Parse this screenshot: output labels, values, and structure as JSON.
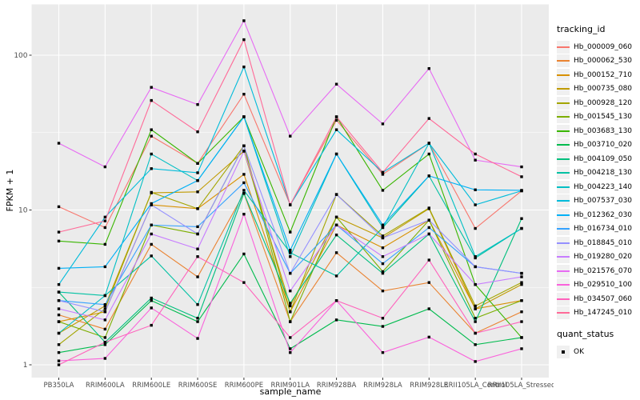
{
  "chart_data": {
    "type": "line",
    "title": "",
    "xlabel": "sample_name",
    "ylabel": "FPKM + 1",
    "y_scale": "log10",
    "y_ticks": [
      1,
      10,
      100
    ],
    "y_tick_labels": [
      "1",
      "10",
      "100"
    ],
    "y_minor_ticks": [
      3.1623,
      31.623
    ],
    "ylim": [
      0.83,
      210
    ],
    "grid": "white major+minor on gray panel",
    "legend_position": "right",
    "point_marker": "black square",
    "categories": [
      "PB350LA",
      "RRIM600LA",
      "RRIM600LE",
      "RRIM600SE",
      "RRIM600PE",
      "RRIM901LA",
      "RRIM928BA",
      "RRIM928LA",
      "RRIM928LE",
      "RRII105LA_Control",
      "RRII105LA_Stressed"
    ],
    "series": [
      {
        "name": "Hb_000009_060",
        "color": "#F8766D",
        "values": [
          10.5,
          7.7,
          30,
          20,
          56,
          10.8,
          38,
          17,
          27,
          7.6,
          13.3
        ]
      },
      {
        "name": "Hb_000062_530",
        "color": "#EA8331",
        "values": [
          2.1,
          1.7,
          6.0,
          3.7,
          12.8,
          1.9,
          5.3,
          3.0,
          3.4,
          1.6,
          2.2
        ]
      },
      {
        "name": "Hb_000152_710",
        "color": "#D89000",
        "values": [
          1.9,
          2.2,
          10.8,
          10.2,
          17,
          2.2,
          8.0,
          5.7,
          8.6,
          2.3,
          2.6
        ]
      },
      {
        "name": "Hb_000735_080",
        "color": "#C09B00",
        "values": [
          1.6,
          2.4,
          12.9,
          13.1,
          24,
          2.4,
          9.0,
          6.6,
          10.2,
          2.3,
          3.3
        ]
      },
      {
        "name": "Hb_000928_120",
        "color": "#A3A500",
        "values": [
          1.35,
          2.3,
          13.0,
          10.2,
          26,
          2.2,
          12.6,
          6.8,
          10.3,
          2.4,
          3.4
        ]
      },
      {
        "name": "Hb_001545_130",
        "color": "#7CAE00",
        "values": [
          1.9,
          1.5,
          8.0,
          7.0,
          26,
          1.9,
          9.0,
          4.0,
          8.6,
          2.0,
          2.6
        ]
      },
      {
        "name": "Hb_003683_130",
        "color": "#39B600",
        "values": [
          6.3,
          6.0,
          33,
          20,
          40,
          7.2,
          40,
          13.4,
          23,
          3.3,
          1.5
        ]
      },
      {
        "name": "Hb_003710_020",
        "color": "#00BB4E",
        "values": [
          1.2,
          1.35,
          2.6,
          1.9,
          5.2,
          1.27,
          1.95,
          1.77,
          2.3,
          1.35,
          1.5
        ]
      },
      {
        "name": "Hb_004109_050",
        "color": "#00BF7D",
        "values": [
          2.95,
          1.4,
          2.7,
          2.0,
          12.8,
          2.5,
          6.9,
          3.9,
          7.0,
          1.9,
          8.8
        ]
      },
      {
        "name": "Hb_004218_130",
        "color": "#00C1A3",
        "values": [
          2.95,
          2.8,
          5.05,
          2.45,
          13.4,
          5.3,
          3.75,
          7.7,
          16.6,
          4.9,
          7.6
        ]
      },
      {
        "name": "Hb_004223_140",
        "color": "#00BFC4",
        "values": [
          1.6,
          2.8,
          23,
          15.5,
          40,
          5.0,
          23,
          7.7,
          27,
          5.0,
          7.6
        ]
      },
      {
        "name": "Hb_007537_030",
        "color": "#00BBDA",
        "values": [
          3.3,
          9.0,
          18.5,
          17.4,
          84,
          10.8,
          33,
          17.5,
          27,
          10.8,
          13.3
        ]
      },
      {
        "name": "Hb_012362_030",
        "color": "#00B0F6",
        "values": [
          4.2,
          4.3,
          11,
          15.5,
          40,
          5.5,
          23,
          8.0,
          16.6,
          13.5,
          13.4
        ]
      },
      {
        "name": "Hb_016734_010",
        "color": "#35A2FF",
        "values": [
          2.6,
          2.45,
          8.0,
          7.8,
          15,
          3.9,
          8.0,
          4.5,
          7.7,
          4.3,
          3.9
        ]
      },
      {
        "name": "Hb_018845_010",
        "color": "#9590FF",
        "values": [
          2.6,
          2.2,
          10.8,
          7.0,
          26,
          3.9,
          12.6,
          6.6,
          8.6,
          4.3,
          3.9
        ]
      },
      {
        "name": "Hb_019280_020",
        "color": "#C77CFF",
        "values": [
          2.3,
          1.95,
          7.0,
          5.6,
          24,
          3.0,
          8.0,
          5.0,
          7.0,
          3.3,
          3.7
        ]
      },
      {
        "name": "Hb_021576_070",
        "color": "#E76BF3",
        "values": [
          27,
          19,
          62,
          48,
          167,
          30,
          65,
          36,
          82,
          21,
          19
        ]
      },
      {
        "name": "Hb_029510_100",
        "color": "#FA62DB",
        "values": [
          1.06,
          1.1,
          2.33,
          1.48,
          9.4,
          1.2,
          2.6,
          1.2,
          1.51,
          1.05,
          1.27
        ]
      },
      {
        "name": "Hb_034507_060",
        "color": "#FF62BC",
        "values": [
          1.0,
          1.4,
          1.8,
          5.0,
          3.4,
          1.5,
          2.6,
          2.0,
          4.75,
          1.6,
          1.9
        ]
      },
      {
        "name": "Hb_147245_010",
        "color": "#FF6A98",
        "values": [
          7.2,
          8.5,
          51,
          32,
          126,
          10.8,
          40,
          17.5,
          39,
          23,
          16.4
        ]
      }
    ]
  },
  "legend": {
    "tracking_title": "tracking_id",
    "quant_title": "quant_status",
    "quant_items": [
      "OK"
    ],
    "point_color": "#000000",
    "key_bg": "#F0F0F0"
  },
  "panel": {
    "bg": "#EBEBEB",
    "grid_color": "#FFFFFF",
    "tick_label_color": "#4D4D4D",
    "tick_mark_color": "#333333",
    "point_color": "#000000"
  }
}
